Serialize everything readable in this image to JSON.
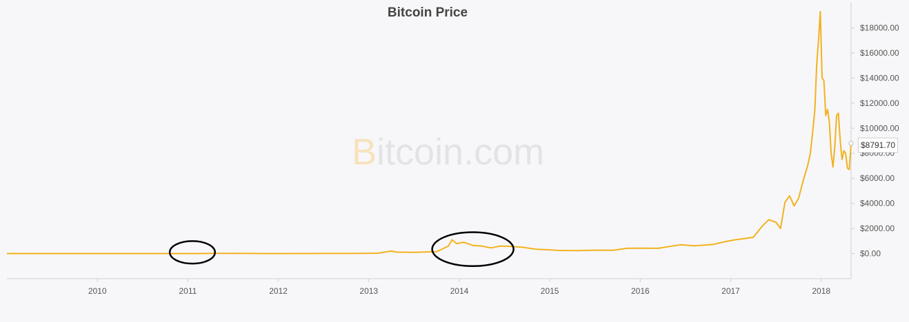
{
  "chart_data": {
    "type": "line",
    "title": "Bitcoin Price",
    "watermark": {
      "brand_letter": "B",
      "text": "itcoin.com"
    },
    "xlabel": "",
    "ylabel": "",
    "x_ticks": [
      "2010",
      "2011",
      "2012",
      "2013",
      "2014",
      "2015",
      "2016",
      "2017",
      "2018"
    ],
    "y_ticks": [
      "$0.00",
      "$2000.00",
      "$4000.00",
      "$6000.00",
      "$8000.00",
      "$10000.00",
      "$12000.00",
      "$14000.00",
      "$16000.00",
      "$18000.00"
    ],
    "ylim": [
      -2000,
      20000
    ],
    "xlim": [
      2009.0,
      2018.33
    ],
    "grid": false,
    "line_color": "#f2b21d",
    "current_value_label": "$8791.70",
    "series": [
      {
        "x": [
          2009.0,
          2009.5,
          2010.0,
          2010.5,
          2010.9,
          2011.1,
          2011.3,
          2011.45,
          2011.7,
          2012.0,
          2012.5,
          2012.9,
          2013.1,
          2013.25,
          2013.3,
          2013.5,
          2013.75,
          2013.88,
          2013.92,
          2013.97,
          2014.05,
          2014.15,
          2014.25,
          2014.35,
          2014.45,
          2014.55,
          2014.7,
          2014.85,
          2015.0,
          2015.1,
          2015.3,
          2015.5,
          2015.7,
          2015.85,
          2016.0,
          2016.2,
          2016.4,
          2016.45,
          2016.6,
          2016.8,
          2016.95,
          2017.05,
          2017.15,
          2017.25,
          2017.35,
          2017.42,
          2017.5,
          2017.55,
          2017.6,
          2017.65,
          2017.7,
          2017.75,
          2017.8,
          2017.85,
          2017.88,
          2017.91,
          2017.93,
          2017.95,
          2017.97,
          2017.99,
          2018.01,
          2018.03,
          2018.05,
          2018.07,
          2018.09,
          2018.11,
          2018.13,
          2018.15,
          2018.17,
          2018.19,
          2018.21,
          2018.23,
          2018.25,
          2018.27,
          2018.29,
          2018.31,
          2018.33
        ],
        "y": [
          0,
          0,
          0,
          0,
          0,
          0,
          15,
          12,
          6,
          5,
          10,
          13,
          30,
          200,
          120,
          100,
          150,
          600,
          1100,
          800,
          900,
          650,
          600,
          450,
          600,
          580,
          500,
          350,
          300,
          250,
          240,
          270,
          260,
          420,
          430,
          420,
          650,
          700,
          620,
          720,
          970,
          1100,
          1200,
          1300,
          2200,
          2700,
          2500,
          2000,
          4100,
          4600,
          3800,
          4400,
          5800,
          7000,
          8000,
          10000,
          11500,
          15000,
          17000,
          19300,
          14000,
          13800,
          11000,
          11500,
          10500,
          8000,
          6900,
          8500,
          11000,
          11200,
          9000,
          7500,
          8200,
          8000,
          6800,
          6700,
          8791.7
        ]
      }
    ],
    "annotations": [
      {
        "shape": "ellipse",
        "x_center": 2011.05,
        "y_center": 100,
        "x_radius": 0.25,
        "y_radius": 900
      },
      {
        "shape": "ellipse",
        "x_center": 2014.15,
        "y_center": 350,
        "x_radius": 0.45,
        "y_radius": 1350
      }
    ]
  }
}
